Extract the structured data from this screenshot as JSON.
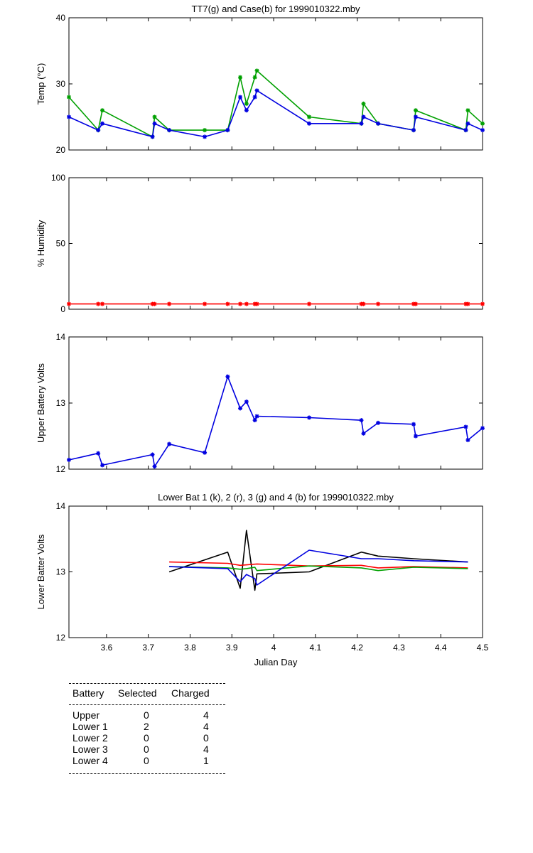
{
  "panels": [
    {
      "id": "temp",
      "title": "TT7(g) and Case(b) for 1999010322.mby",
      "ylabel": "Temp  (°C)",
      "ylim": [
        20,
        40
      ],
      "yticks": [
        "20",
        "30",
        "40"
      ],
      "show_xticks": false,
      "series": [
        {
          "color": "#00a000",
          "marker": true,
          "x": [
            3.51,
            3.58,
            3.59,
            3.71,
            3.715,
            3.75,
            3.835,
            3.89,
            3.92,
            3.935,
            3.955,
            3.96,
            4.085,
            4.21,
            4.215,
            4.25,
            4.335,
            4.34,
            4.46,
            4.465,
            4.5
          ],
          "y": [
            28,
            23,
            26,
            22,
            25,
            23,
            23,
            23,
            31,
            27,
            31,
            32,
            25,
            24,
            27,
            24,
            23,
            26,
            23,
            26,
            24
          ]
        },
        {
          "color": "#0000e0",
          "marker": true,
          "x": [
            3.51,
            3.58,
            3.59,
            3.71,
            3.715,
            3.75,
            3.835,
            3.89,
            3.92,
            3.935,
            3.955,
            3.96,
            4.085,
            4.21,
            4.215,
            4.25,
            4.335,
            4.34,
            4.46,
            4.465,
            4.5
          ],
          "y": [
            25,
            23,
            24,
            22,
            24,
            23,
            22,
            23,
            28,
            26,
            28,
            29,
            24,
            24,
            25,
            24,
            23,
            25,
            23,
            24,
            23
          ]
        }
      ]
    },
    {
      "id": "humidity",
      "title": "",
      "ylabel": "% Humidity",
      "ylim": [
        0,
        100
      ],
      "yticks": [
        "0",
        "50",
        "100"
      ],
      "show_xticks": false,
      "series": [
        {
          "color": "#ff0000",
          "marker": true,
          "x": [
            3.51,
            3.58,
            3.59,
            3.71,
            3.715,
            3.75,
            3.835,
            3.89,
            3.92,
            3.935,
            3.955,
            3.96,
            4.085,
            4.21,
            4.215,
            4.25,
            4.335,
            4.34,
            4.46,
            4.465,
            4.5
          ],
          "y": [
            4,
            4,
            4,
            4,
            4,
            4,
            4,
            4,
            4,
            4,
            4,
            4,
            4,
            4,
            4,
            4,
            4,
            4,
            4,
            4,
            4
          ]
        }
      ]
    },
    {
      "id": "upper",
      "title": "",
      "ylabel": "Upper Battery Volts",
      "ylim": [
        12,
        14
      ],
      "yticks": [
        "12",
        "13",
        "14"
      ],
      "show_xticks": false,
      "series": [
        {
          "color": "#0000e0",
          "marker": true,
          "x": [
            3.51,
            3.58,
            3.59,
            3.71,
            3.715,
            3.75,
            3.835,
            3.89,
            3.92,
            3.935,
            3.955,
            3.96,
            4.085,
            4.21,
            4.215,
            4.25,
            4.335,
            4.34,
            4.46,
            4.465,
            4.5
          ],
          "y": [
            12.14,
            12.24,
            12.06,
            12.22,
            12.04,
            12.38,
            12.25,
            13.4,
            12.92,
            13.02,
            12.74,
            12.8,
            12.78,
            12.74,
            12.54,
            12.7,
            12.68,
            12.5,
            12.64,
            12.44,
            12.62
          ]
        }
      ]
    },
    {
      "id": "lower",
      "title": "Lower Bat 1 (k), 2 (r), 3 (g) and 4 (b) for 1999010322.mby",
      "ylabel": "Lower Batter Volts",
      "ylim": [
        12,
        14
      ],
      "yticks": [
        "12",
        "13",
        "14"
      ],
      "show_xticks": true,
      "series": [
        {
          "color": "#000000",
          "marker": false,
          "x": [
            3.75,
            3.89,
            3.92,
            3.935,
            3.955,
            3.96,
            4.085,
            4.21,
            4.25,
            4.335,
            4.465
          ],
          "y": [
            13.0,
            13.3,
            12.75,
            13.63,
            12.72,
            12.97,
            13.0,
            13.3,
            13.24,
            13.2,
            13.15
          ]
        },
        {
          "color": "#ff0000",
          "marker": false,
          "x": [
            3.75,
            3.89,
            3.92,
            3.96,
            4.085,
            4.21,
            4.25,
            4.335,
            4.465
          ],
          "y": [
            13.15,
            13.13,
            13.1,
            13.12,
            13.09,
            13.1,
            13.06,
            13.08,
            13.06
          ]
        },
        {
          "color": "#00a000",
          "marker": false,
          "x": [
            3.75,
            3.89,
            3.92,
            3.935,
            3.955,
            3.96,
            4.085,
            4.21,
            4.25,
            4.335,
            4.465
          ],
          "y": [
            13.08,
            13.06,
            13.04,
            13.05,
            13.07,
            13.02,
            13.09,
            13.06,
            13.02,
            13.07,
            13.05
          ]
        },
        {
          "color": "#0000e0",
          "marker": false,
          "x": [
            3.75,
            3.89,
            3.92,
            3.935,
            3.955,
            3.96,
            4.085,
            4.21,
            4.25,
            4.335,
            4.465
          ],
          "y": [
            13.08,
            13.05,
            12.85,
            12.96,
            12.9,
            12.8,
            13.33,
            13.2,
            13.2,
            13.17,
            13.15
          ]
        }
      ]
    }
  ],
  "xaxis": {
    "label": "Julian Day",
    "xlim": [
      3.51,
      4.5
    ],
    "ticks": [
      3.6,
      3.7,
      3.8,
      3.9,
      4.0,
      4.1,
      4.2,
      4.3,
      4.4,
      4.5
    ],
    "tick_labels": [
      "3.6",
      "3.7",
      "3.8",
      "3.9",
      "4",
      "4.1",
      "4.2",
      "4.3",
      "4.4",
      "4.5"
    ]
  },
  "table": {
    "headers": [
      "Battery",
      "Selected",
      "Charged"
    ],
    "rows": [
      {
        "battery": "Upper",
        "selected": "0",
        "charged": "4"
      },
      {
        "battery": "Lower 1",
        "selected": "2",
        "charged": "4"
      },
      {
        "battery": "Lower 2",
        "selected": "0",
        "charged": "0"
      },
      {
        "battery": "Lower 3",
        "selected": "0",
        "charged": "4"
      },
      {
        "battery": "Lower 4",
        "selected": "0",
        "charged": "1"
      }
    ]
  }
}
